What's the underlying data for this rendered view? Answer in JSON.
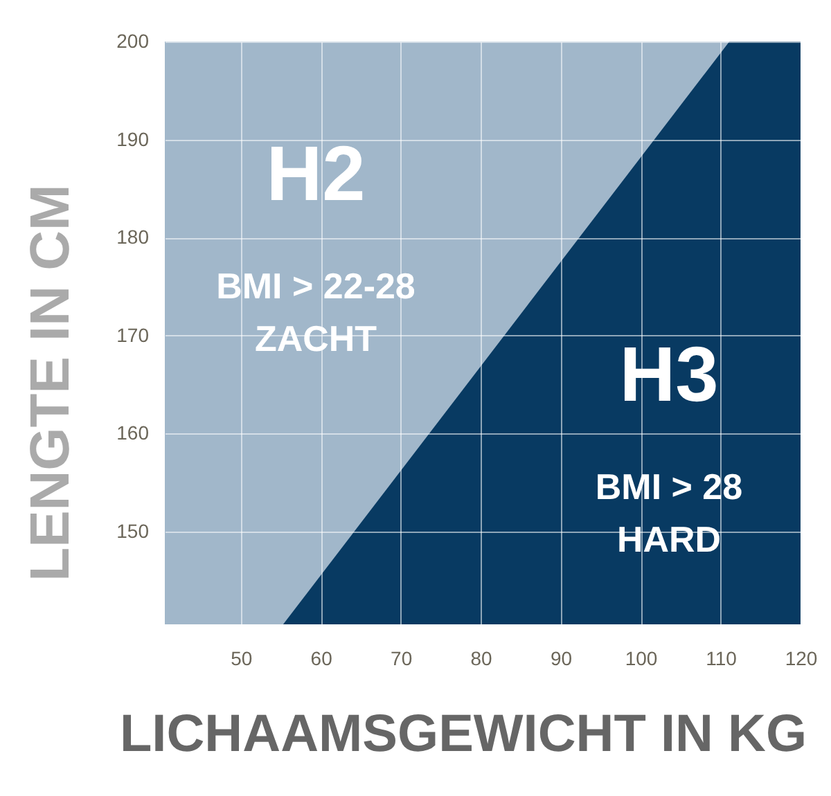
{
  "chart_data": {
    "type": "area",
    "xlabel": "LICHAAMSGEWICHT IN KG",
    "ylabel": "LENGTE IN CM",
    "series": [
      {
        "name": "H2",
        "color": "#a1b7ca",
        "x": [
          40.5,
          111.1
        ],
        "values": [
          200,
          200
        ]
      },
      {
        "name": "H3",
        "color": "#083a62",
        "x": [
          55.3,
          111.1,
          120
        ],
        "values": [
          140.5,
          200,
          200
        ]
      }
    ],
    "annotations": [
      "BMI > 22-28\nZACHT",
      "BMI > 28\nHARD"
    ],
    "xlim": [
      40.5,
      120
    ],
    "ylim": [
      140.5,
      200
    ],
    "xticks": [
      50,
      60,
      70,
      80,
      90,
      100,
      110,
      120
    ],
    "yticks": [
      150,
      160,
      170,
      180,
      190,
      200
    ],
    "grid": true
  }
}
